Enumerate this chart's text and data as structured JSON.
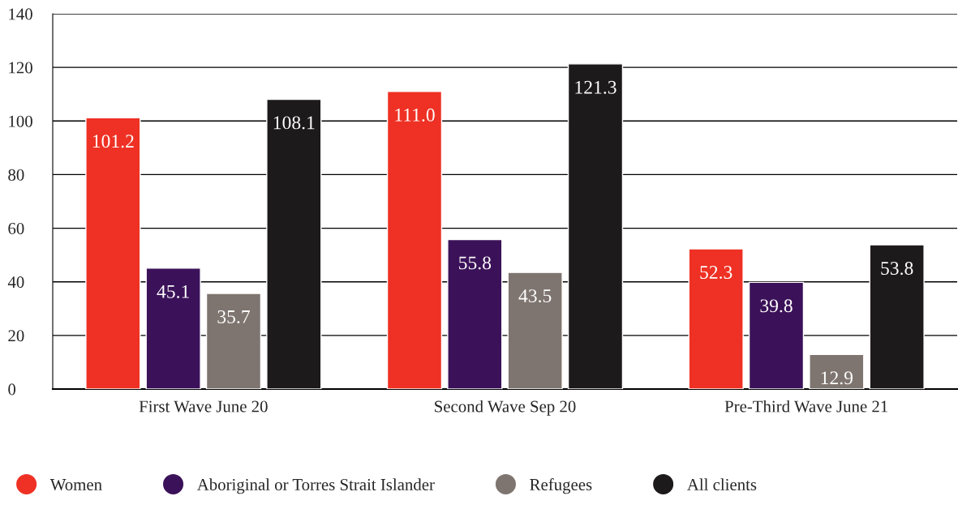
{
  "chart_data": {
    "type": "bar",
    "categories": [
      "First Wave June 20",
      "Second Wave Sep 20",
      "Pre-Third Wave June 21"
    ],
    "series": [
      {
        "name": "Women",
        "color": "#ee3124",
        "values": [
          101.2,
          111.0,
          52.3
        ]
      },
      {
        "name": "Aboriginal or Torres Strait Islander",
        "color": "#3b1259",
        "values": [
          45.1,
          55.8,
          39.8
        ]
      },
      {
        "name": "Refugees",
        "color": "#7f7570",
        "values": [
          35.7,
          43.5,
          12.9
        ]
      },
      {
        "name": "All clients",
        "color": "#1d1a1b",
        "values": [
          108.1,
          121.3,
          53.8
        ]
      }
    ],
    "value_labels": [
      [
        "101.2",
        "111.0",
        "52.3"
      ],
      [
        "45.1",
        "55.8",
        "39.8"
      ],
      [
        "35.7",
        "43.5",
        "12.9"
      ],
      [
        "108.1",
        "121.3",
        "53.8"
      ]
    ],
    "ylim": [
      0,
      140
    ],
    "yticks": [
      0,
      20,
      40,
      60,
      80,
      100,
      120,
      140
    ],
    "grid": "y",
    "legend": "bottom",
    "marker": "circle"
  }
}
